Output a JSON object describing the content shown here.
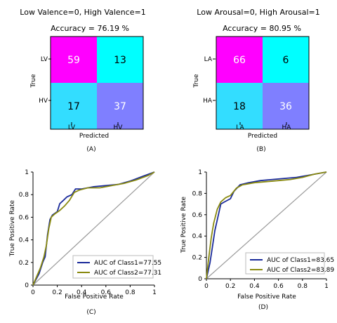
{
  "chart_data": [
    {
      "type": "heatmap",
      "panel_label": "(A)",
      "title": "Low Valence=0, High Valence=1",
      "accuracy_text": "Accuracy = 76.19 %",
      "xlabel": "Predicted",
      "ylabel": "True",
      "row_labels": [
        "LV",
        "HV"
      ],
      "col_labels": [
        "LV",
        "HV"
      ],
      "values": [
        [
          59,
          13
        ],
        [
          17,
          37
        ]
      ],
      "cell_colors": [
        [
          "#ff00ff",
          "#00ffff"
        ],
        [
          "#33ddff",
          "#7f7fff"
        ]
      ],
      "value_text_colors": [
        [
          "#ffffff",
          "#000000"
        ],
        [
          "#000000",
          "#ffffff"
        ]
      ]
    },
    {
      "type": "heatmap",
      "panel_label": "(B)",
      "title": "Low Arousal=0, High Arousal=1",
      "accuracy_text": "Accuracy = 80.95 %",
      "xlabel": "Predicted",
      "ylabel": "True",
      "row_labels": [
        "LA",
        "HA"
      ],
      "col_labels": [
        "LA",
        "HA"
      ],
      "values": [
        [
          66,
          6
        ],
        [
          18,
          36
        ]
      ],
      "cell_colors": [
        [
          "#ff00ff",
          "#00ffff"
        ],
        [
          "#33ddff",
          "#7f7fff"
        ]
      ],
      "value_text_colors": [
        [
          "#ffffff",
          "#000000"
        ],
        [
          "#000000",
          "#ffffff"
        ]
      ]
    },
    {
      "type": "line",
      "panel_label": "(C)",
      "xlabel": "False Positive Rate",
      "ylabel": "True Positive Rate",
      "xlim": [
        0,
        1
      ],
      "ylim": [
        0,
        1
      ],
      "xticks": [
        "0",
        "0.2",
        "0.4",
        "0.6",
        "0.8",
        "1"
      ],
      "yticks": [
        "0",
        "0.2",
        "0.4",
        "0.6",
        "0.8",
        "1"
      ],
      "legend_position": "lower-right",
      "series": [
        {
          "name": "AUC of Class1=77.55",
          "color": "#1a2a9a",
          "points": [
            [
              0,
              0
            ],
            [
              0.05,
              0.1
            ],
            [
              0.08,
              0.2
            ],
            [
              0.1,
              0.25
            ],
            [
              0.12,
              0.45
            ],
            [
              0.14,
              0.58
            ],
            [
              0.16,
              0.62
            ],
            [
              0.2,
              0.65
            ],
            [
              0.22,
              0.72
            ],
            [
              0.25,
              0.75
            ],
            [
              0.28,
              0.78
            ],
            [
              0.32,
              0.8
            ],
            [
              0.35,
              0.85
            ],
            [
              0.4,
              0.85
            ],
            [
              0.45,
              0.86
            ],
            [
              0.5,
              0.87
            ],
            [
              0.6,
              0.88
            ],
            [
              0.7,
              0.89
            ],
            [
              0.8,
              0.92
            ],
            [
              0.9,
              0.96
            ],
            [
              1,
              1
            ]
          ]
        },
        {
          "name": "AUC of Class2=77.31",
          "color": "#8a8a10",
          "points": [
            [
              0,
              0
            ],
            [
              0.06,
              0.15
            ],
            [
              0.09,
              0.25
            ],
            [
              0.11,
              0.35
            ],
            [
              0.13,
              0.5
            ],
            [
              0.15,
              0.6
            ],
            [
              0.18,
              0.63
            ],
            [
              0.22,
              0.66
            ],
            [
              0.26,
              0.7
            ],
            [
              0.3,
              0.75
            ],
            [
              0.34,
              0.82
            ],
            [
              0.38,
              0.84
            ],
            [
              0.45,
              0.86
            ],
            [
              0.55,
              0.86
            ],
            [
              0.65,
              0.88
            ],
            [
              0.75,
              0.9
            ],
            [
              0.85,
              0.93
            ],
            [
              0.95,
              0.97
            ],
            [
              1,
              1
            ]
          ]
        }
      ]
    },
    {
      "type": "line",
      "panel_label": "(D)",
      "xlabel": "False Positive Rate",
      "ylabel": "True Positive Rate",
      "xlim": [
        0,
        1
      ],
      "ylim": [
        0,
        1
      ],
      "xticks": [
        "0",
        "0.2",
        "0.4",
        "0.6",
        "0.8",
        "1"
      ],
      "yticks": [
        "0",
        "0.2",
        "0.4",
        "0.6",
        "0.8",
        "1"
      ],
      "legend_position": "lower-right",
      "series": [
        {
          "name": "AUC of Class1=83.65",
          "color": "#1a2a9a",
          "points": [
            [
              0,
              0
            ],
            [
              0.03,
              0.15
            ],
            [
              0.05,
              0.3
            ],
            [
              0.07,
              0.45
            ],
            [
              0.1,
              0.6
            ],
            [
              0.12,
              0.7
            ],
            [
              0.15,
              0.72
            ],
            [
              0.2,
              0.75
            ],
            [
              0.23,
              0.82
            ],
            [
              0.28,
              0.88
            ],
            [
              0.35,
              0.9
            ],
            [
              0.45,
              0.92
            ],
            [
              0.55,
              0.93
            ],
            [
              0.65,
              0.94
            ],
            [
              0.75,
              0.95
            ],
            [
              0.85,
              0.97
            ],
            [
              0.95,
              0.99
            ],
            [
              1,
              1
            ]
          ]
        },
        {
          "name": "AUC of Class2=83.89",
          "color": "#8a8a10",
          "points": [
            [
              0,
              0
            ],
            [
              0.02,
              0.2
            ],
            [
              0.04,
              0.38
            ],
            [
              0.06,
              0.52
            ],
            [
              0.09,
              0.65
            ],
            [
              0.12,
              0.72
            ],
            [
              0.16,
              0.76
            ],
            [
              0.2,
              0.78
            ],
            [
              0.25,
              0.85
            ],
            [
              0.3,
              0.88
            ],
            [
              0.4,
              0.9
            ],
            [
              0.5,
              0.91
            ],
            [
              0.6,
              0.92
            ],
            [
              0.7,
              0.93
            ],
            [
              0.8,
              0.95
            ],
            [
              0.9,
              0.98
            ],
            [
              1,
              1
            ]
          ]
        }
      ]
    }
  ]
}
